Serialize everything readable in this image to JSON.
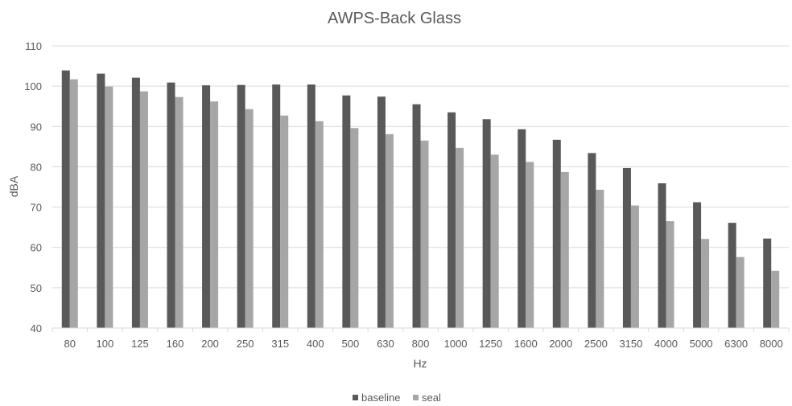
{
  "chart_data": {
    "type": "bar",
    "title": "AWPS-Back Glass",
    "xlabel": "Hz",
    "ylabel": "dBA",
    "ylim": [
      40,
      110
    ],
    "yticks": [
      40,
      50,
      60,
      70,
      80,
      90,
      100,
      110
    ],
    "grid": true,
    "legend_position": "bottom",
    "categories": [
      "80",
      "100",
      "125",
      "160",
      "200",
      "250",
      "315",
      "400",
      "500",
      "630",
      "800",
      "1000",
      "1250",
      "1600",
      "2000",
      "2500",
      "3150",
      "4000",
      "5000",
      "6300",
      "8000"
    ],
    "series": [
      {
        "name": "baseline",
        "color": "#595959",
        "values": [
          103.9,
          103.1,
          102.1,
          100.9,
          100.2,
          100.3,
          100.4,
          100.4,
          97.7,
          97.4,
          95.5,
          93.5,
          91.8,
          89.3,
          86.7,
          83.4,
          79.7,
          75.9,
          71.2,
          66.1,
          62.2
        ]
      },
      {
        "name": "seal",
        "color": "#a6a6a6",
        "values": [
          101.7,
          99.9,
          98.7,
          97.3,
          96.2,
          94.3,
          92.7,
          91.3,
          89.6,
          88.1,
          86.5,
          84.7,
          83.0,
          81.2,
          78.7,
          74.3,
          70.4,
          66.5,
          62.1,
          57.6,
          54.2
        ]
      }
    ]
  }
}
